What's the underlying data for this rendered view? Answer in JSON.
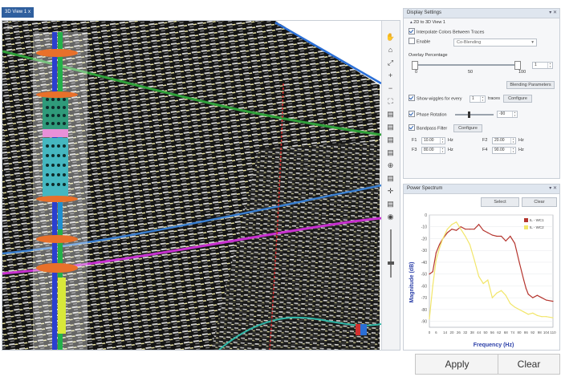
{
  "tab": {
    "label": "3D View 1",
    "close": "x"
  },
  "viewport": {
    "label": "3D"
  },
  "toolbar_icons": [
    "hand-icon",
    "home-icon",
    "fit-icon",
    "zoom-in-icon",
    "zoom-out-icon",
    "extent-icon",
    "layer-icon",
    "layer-icon",
    "layer-icon",
    "layer-icon",
    "zoom-icon",
    "layer-icon",
    "crosshair-icon",
    "layer-icon",
    "camera-icon"
  ],
  "display_settings": {
    "title": "Display Settings",
    "controls": "▾ ✕",
    "sub_title": "2D to 3D View 1",
    "interpolate_label": "Interpolate Colors Between Traces",
    "enable_label": "Enable",
    "enable_select": "Co-Blending",
    "overlay_label": "Overlay Percentage",
    "slider_min": "0",
    "slider_mid": "50",
    "slider_max": "100",
    "slider_value": "1",
    "blending_button": "Blending Parameters",
    "wiggles_label": "Show wiggles for every",
    "wiggles_value": "1",
    "wiggles_unit": "traces",
    "configure_label": "Configure",
    "phase_label": "Phase Rotation",
    "phase_value": "-90",
    "bandpass_label": "Bandpass Filter",
    "bandpass_configure": "Configure",
    "f1_label": "F1",
    "f1_value": "10.00",
    "f2_label": "F2",
    "f2_value": "20.00",
    "f3_label": "F3",
    "f3_value": "80.00",
    "f4_label": "F4",
    "f4_value": "90.00",
    "hz": "Hz"
  },
  "power_spectrum": {
    "title": "Power Spectrum",
    "controls": "▾ ✕",
    "select_button": "Select",
    "clear_button": "Clear",
    "legend": [
      {
        "name": "IL - WC1",
        "color": "#b5352e"
      },
      {
        "name": "IL - WC2",
        "color": "#f2e66a"
      }
    ]
  },
  "chart_data": {
    "type": "line",
    "title": "",
    "xlabel": "Frequency (Hz)",
    "ylabel": "Magnitude (dB)",
    "x_ticks": [
      "0",
      "6",
      "14",
      "20",
      "26",
      "32",
      "38",
      "44",
      "50",
      "56",
      "62",
      "68",
      "74",
      "80",
      "86",
      "92",
      "98",
      "104",
      "110"
    ],
    "y_ticks": [
      "0",
      "-10",
      "-20",
      "-30",
      "-40",
      "-50",
      "-60",
      "-70",
      "-80",
      "-90"
    ],
    "xlim": [
      0,
      110
    ],
    "ylim": [
      -95,
      0
    ],
    "series": [
      {
        "name": "IL - WC1",
        "color": "#b5352e",
        "x": [
          0,
          3,
          6,
          9,
          12,
          16,
          20,
          24,
          28,
          32,
          36,
          40,
          44,
          48,
          52,
          56,
          60,
          64,
          68,
          72,
          76,
          80,
          84,
          86,
          88,
          92,
          96,
          100,
          104,
          110
        ],
        "y": [
          -50,
          -48,
          -32,
          -25,
          -20,
          -15,
          -12,
          -13,
          -10,
          -12,
          -12,
          -12,
          -8,
          -13,
          -15,
          -17,
          -18,
          -18,
          -22,
          -18,
          -24,
          -40,
          -55,
          -62,
          -67,
          -70,
          -68,
          -70,
          -72,
          -73
        ]
      },
      {
        "name": "IL - WC2",
        "color": "#f2e66a",
        "x": [
          0,
          3,
          6,
          9,
          12,
          16,
          20,
          24,
          28,
          32,
          36,
          40,
          44,
          48,
          52,
          56,
          60,
          64,
          68,
          72,
          76,
          80,
          84,
          88,
          92,
          96,
          100,
          104,
          110
        ],
        "y": [
          -88,
          -60,
          -38,
          -28,
          -20,
          -12,
          -8,
          -6,
          -12,
          -18,
          -25,
          -38,
          -52,
          -58,
          -55,
          -70,
          -66,
          -64,
          -68,
          -75,
          -78,
          -80,
          -82,
          -84,
          -83,
          -85,
          -86,
          -86,
          -87
        ]
      }
    ]
  },
  "apply_label": "Apply",
  "clear_label": "Clear"
}
